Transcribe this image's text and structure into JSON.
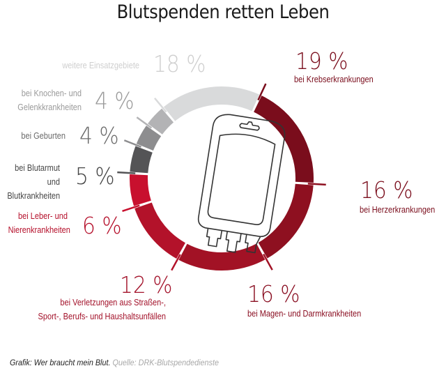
{
  "title": "Blutspenden retten Leben",
  "footer": {
    "graphic": "Grafik: Wer braucht mein Blut.",
    "source": "Quelle: DRK-Blutspendedienste"
  },
  "chart_data": {
    "type": "pie",
    "variant": "donut",
    "title": "Blutspenden retten Leben",
    "unit": "%",
    "slices": [
      {
        "key": "krebs",
        "label": "bei Krebserkrankungen",
        "value": 19,
        "value_label": "19 %",
        "color": "#7a0d1c",
        "text_color": "#7a0d1c"
      },
      {
        "key": "herz",
        "label": "bei Herzerkrankungen",
        "value": 16,
        "value_label": "16 %",
        "color": "#8e1020",
        "text_color": "#7a0d1c"
      },
      {
        "key": "magen",
        "label": "bei Magen- und Darmkrankheiten",
        "value": 16,
        "value_label": "16 %",
        "color": "#a21225",
        "text_color": "#8a0f22"
      },
      {
        "key": "verletzungen",
        "label": "bei Verletzungen aus Straßen-, Sport-, Berufs- und Haushaltsunfällen",
        "label_lines": [
          "bei Verletzungen aus Straßen-,",
          "Sport-, Berufs- und Haushaltsunfällen"
        ],
        "value": 12,
        "value_label": "12 %",
        "color": "#b3122a",
        "text_color": "#a3122a"
      },
      {
        "key": "leber",
        "label": "bei Leber- und Nierenkrankheiten",
        "label_lines": [
          "bei Leber- und",
          "Nierenkrankheiten"
        ],
        "value": 6,
        "value_label": "6 %",
        "color": "#c8102e",
        "text_color": "#b5102b"
      },
      {
        "key": "blutarmut",
        "label": "bei Blutarmut und Blutkrankheiten",
        "label_lines": [
          "bei Blutarmut und",
          "Blutkrankheiten"
        ],
        "value": 5,
        "value_label": "5 %",
        "color": "#545456",
        "text_color": "#454545"
      },
      {
        "key": "geburten",
        "label": "bei Geburten",
        "value": 4,
        "value_label": "4 %",
        "color": "#8d8d8f",
        "text_color": "#6a6a6a"
      },
      {
        "key": "knochen",
        "label": "bei Knochen- und Gelenkkrankheiten",
        "label_lines": [
          "bei Knochen- und",
          "Gelenkkrankheiten"
        ],
        "value": 4,
        "value_label": "4 %",
        "color": "#b3b3b5",
        "text_color": "#9a9a9a"
      },
      {
        "key": "weitere",
        "label": "weitere Einsatzgebiete",
        "value": 18,
        "value_label": "18 %",
        "color": "#d9dadb",
        "text_color": "#cfcfcf"
      }
    ],
    "center_icon": "blood-bag-icon"
  }
}
